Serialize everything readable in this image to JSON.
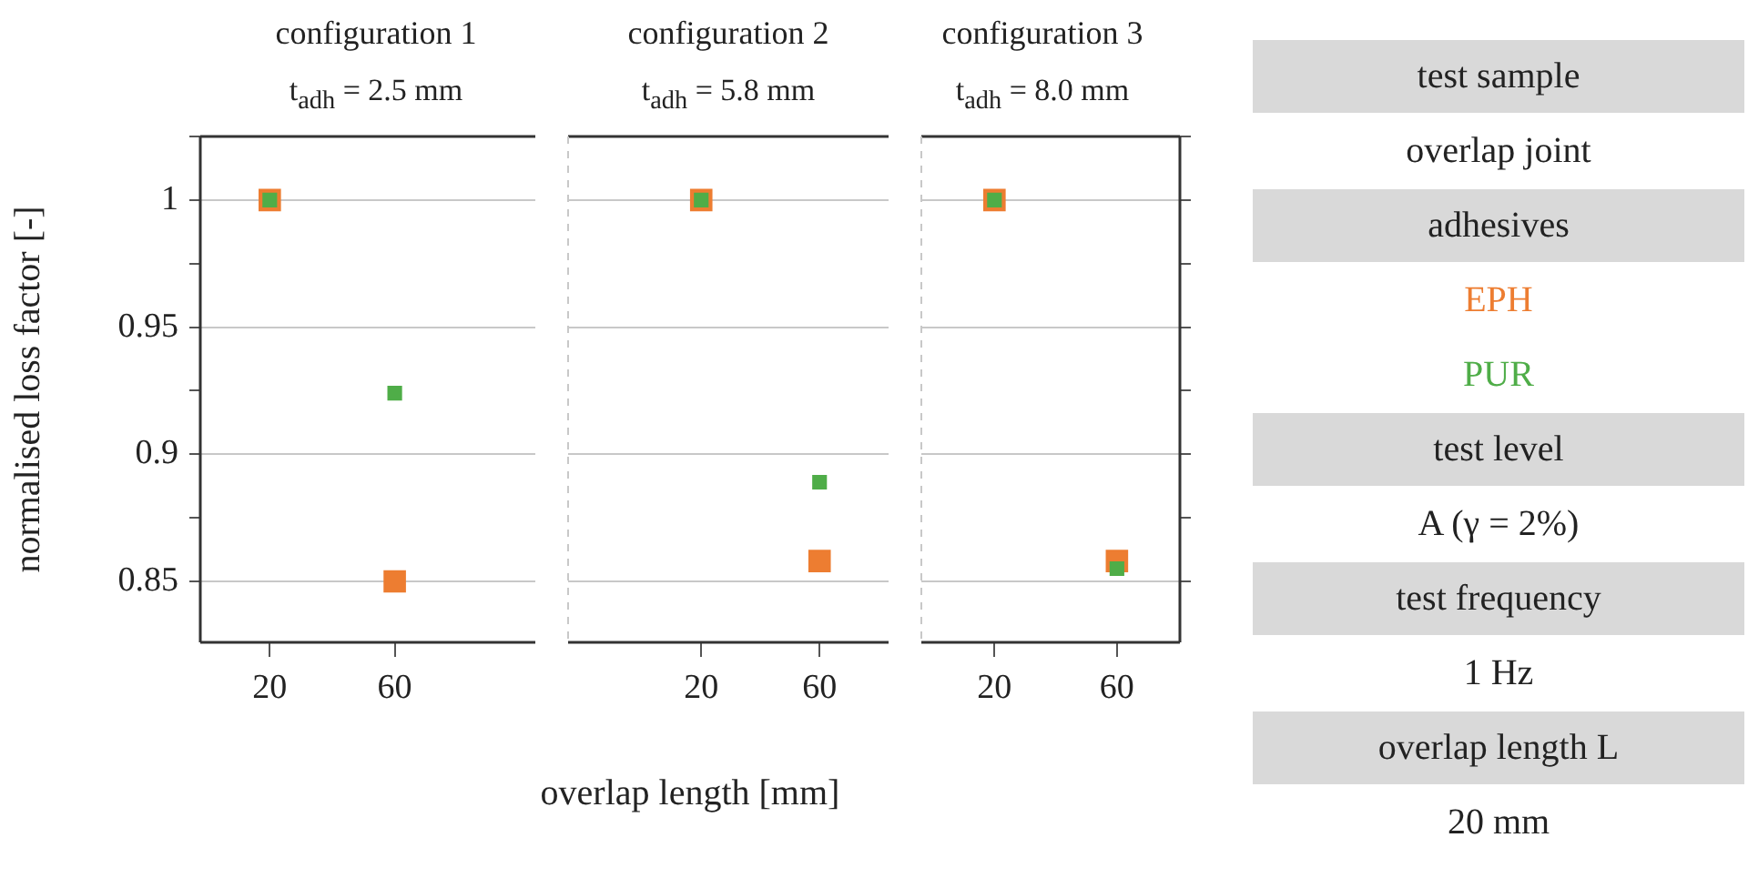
{
  "chart_data": [
    {
      "type": "scatter",
      "title": "configuration 1",
      "subtitle": "t$_{adh}$ = 2.5 mm",
      "ylabel": "normalised loss factor [-]",
      "categories": [
        "20",
        "60"
      ],
      "ylim": [
        0.826,
        1.025
      ],
      "yticks": [
        0.85,
        {
          "value": 0.875,
          "label": null
        },
        0.9,
        {
          "value": 0.925,
          "label": null
        },
        0.95,
        {
          "value": 0.975,
          "label": null
        },
        1,
        {
          "value": 1.025,
          "label": null
        }
      ],
      "grid": "y",
      "marker": "square",
      "series": [
        {
          "name": "EPH",
          "color": "#ed7d31",
          "values": [
            1,
            0.85
          ]
        },
        {
          "name": "PUR",
          "color": "#4fad48",
          "values": [
            1,
            0.924
          ]
        }
      ]
    },
    {
      "type": "scatter",
      "title": "configuration 2",
      "subtitle": "t$_{adh}$ = 5.8 mm",
      "xlabel": "overlap length [mm]",
      "categories": [
        "20",
        "60"
      ],
      "ylim": [
        0.826,
        1.025
      ],
      "yticks": [
        0.85,
        0.9,
        0.95,
        1
      ],
      "grid": "y",
      "marker": "square",
      "tick_labels": "x",
      "series": [
        {
          "color": "#ed7d31",
          "values": [
            1,
            0.858
          ]
        },
        {
          "color": "#4fad48",
          "values": [
            1,
            0.889
          ]
        }
      ]
    },
    {
      "type": "scatter",
      "title": "configuration 3",
      "subtitle": "t$_{adh}$ = 8.0 mm",
      "categories": [
        "20",
        "60"
      ],
      "ylim": [
        0.826,
        1.025
      ],
      "yticks": [
        0.85,
        {
          "value": 0.875,
          "label": null
        },
        0.9,
        {
          "value": 0.925,
          "label": null
        },
        0.95,
        {
          "value": 0.975,
          "label": null
        },
        1,
        {
          "value": 1.025,
          "label": null
        }
      ],
      "grid": "y",
      "marker": "square",
      "tick_labels": "x",
      "series": [
        {
          "color": "#ed7d31",
          "values": [
            1,
            0.858
          ]
        },
        {
          "color": "#4fad48",
          "values": [
            1,
            0.855
          ]
        }
      ]
    },
    {
      "type": "other",
      "annotations": [
        "test sample",
        "overlap joint",
        "adhesives",
        "test level",
        "A (γ = 2%)",
        "test frequency",
        "1 Hz",
        "overlap length L",
        "20 mm"
      ]
    }
  ]
}
